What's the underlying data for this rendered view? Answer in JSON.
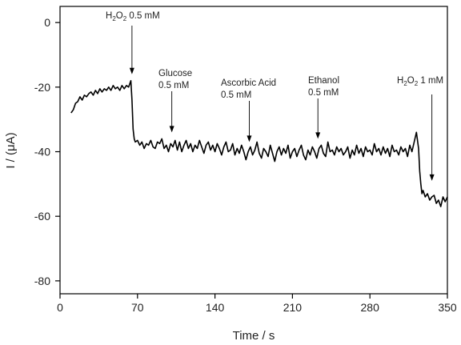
{
  "chart_data": {
    "type": "line",
    "title": "",
    "xlabel": "Time / s",
    "ylabel": "I / (μA)",
    "xlim": [
      0,
      350
    ],
    "ylim": [
      -84,
      5
    ],
    "x_ticks": [
      0,
      70,
      140,
      210,
      280,
      350
    ],
    "y_ticks": [
      0,
      -20,
      -40,
      -60,
      -80
    ],
    "grid": false,
    "series": [
      {
        "x": [
          10,
          12,
          14,
          16,
          18,
          20,
          22,
          24,
          26,
          28,
          30,
          32,
          34,
          36,
          38,
          40,
          42,
          44,
          46,
          48,
          50,
          52,
          54,
          56,
          58,
          60,
          62,
          63,
          64,
          65,
          66,
          67,
          68,
          70,
          72,
          74,
          76,
          78,
          80,
          82,
          84,
          86,
          88,
          90,
          92,
          94,
          96,
          98,
          100,
          102,
          104,
          106,
          108,
          110,
          112,
          114,
          116,
          118,
          120,
          122,
          124,
          126,
          128,
          130,
          132,
          134,
          136,
          138,
          140,
          142,
          144,
          146,
          148,
          150,
          152,
          154,
          156,
          158,
          160,
          162,
          164,
          166,
          168,
          170,
          172,
          174,
          176,
          178,
          180,
          182,
          184,
          186,
          188,
          190,
          192,
          194,
          196,
          198,
          200,
          202,
          204,
          206,
          208,
          210,
          212,
          214,
          216,
          218,
          220,
          222,
          224,
          226,
          228,
          230,
          232,
          234,
          236,
          238,
          240,
          242,
          244,
          246,
          248,
          250,
          252,
          254,
          256,
          258,
          260,
          262,
          264,
          266,
          268,
          270,
          272,
          274,
          276,
          278,
          280,
          282,
          284,
          286,
          288,
          290,
          292,
          294,
          296,
          298,
          300,
          302,
          304,
          306,
          308,
          310,
          312,
          314,
          316,
          318,
          320,
          322,
          324,
          325,
          326,
          327,
          328,
          330,
          332,
          334,
          336,
          338,
          340,
          342,
          344,
          346,
          348,
          350
        ],
        "y": [
          -28,
          -27,
          -25,
          -24.5,
          -23,
          -24,
          -22.5,
          -23,
          -22,
          -21.5,
          -22.5,
          -21,
          -22,
          -20.5,
          -21.5,
          -20.5,
          -21,
          -20,
          -21,
          -19.5,
          -20.5,
          -20,
          -21,
          -19.5,
          -20.5,
          -19.5,
          -20,
          -19,
          -18,
          -24,
          -33,
          -36,
          -37,
          -36.5,
          -38,
          -37,
          -39,
          -37.5,
          -38,
          -36.5,
          -38.5,
          -39,
          -37,
          -37.5,
          -36,
          -39,
          -38,
          -40,
          -37.5,
          -38.5,
          -36.5,
          -39.5,
          -37,
          -40,
          -38,
          -36.5,
          -39,
          -37.5,
          -40,
          -38,
          -39,
          -36.5,
          -38.5,
          -40.5,
          -38,
          -37,
          -39.5,
          -38,
          -40,
          -37.5,
          -39,
          -41,
          -38.5,
          -37,
          -40,
          -39.5,
          -37.5,
          -41,
          -39,
          -40.5,
          -38,
          -40,
          -42.5,
          -40,
          -38.5,
          -41,
          -39.5,
          -37,
          -40.5,
          -42,
          -39,
          -40,
          -41.5,
          -38,
          -40.5,
          -43,
          -40,
          -38.5,
          -41,
          -39,
          -40.5,
          -38,
          -42,
          -40,
          -39,
          -41.5,
          -39.5,
          -38,
          -41,
          -42.5,
          -39.5,
          -41,
          -38.5,
          -40,
          -42,
          -39,
          -38,
          -40.5,
          -41.5,
          -37,
          -40,
          -39.5,
          -41,
          -38.5,
          -40,
          -39,
          -41,
          -40,
          -38.5,
          -42,
          -39.5,
          -41,
          -38,
          -40.5,
          -39,
          -41.5,
          -38.5,
          -40,
          -39.5,
          -41,
          -37.5,
          -40,
          -39,
          -41,
          -38.5,
          -40.5,
          -39,
          -41.5,
          -38,
          -40,
          -39.5,
          -41,
          -38.5,
          -40,
          -39,
          -41.5,
          -38,
          -40,
          -37,
          -34,
          -39,
          -46,
          -50,
          -53,
          -52,
          -54,
          -53,
          -55,
          -54,
          -53.5,
          -56,
          -55,
          -57,
          -54,
          -55.5,
          -54
        ]
      }
    ],
    "annotations": [
      {
        "x": 65,
        "y": -16,
        "base": "H",
        "sub1": "2",
        "mid": "O",
        "sub2": "2",
        "rest": " 0.5 mM",
        "line2": ""
      },
      {
        "x": 101,
        "y": -34,
        "text": "Glucose",
        "line2": "0.5 mM"
      },
      {
        "x": 171,
        "y": -37,
        "text": "Ascorbic Acid",
        "line2": "0.5 mM"
      },
      {
        "x": 233,
        "y": -36,
        "text": "Ethanol",
        "line2": "0.5 mM"
      },
      {
        "x": 336,
        "y": -49,
        "base": "H",
        "sub1": "2",
        "mid": "O",
        "sub2": "2",
        "rest": " 1 mM",
        "line2": ""
      }
    ]
  }
}
